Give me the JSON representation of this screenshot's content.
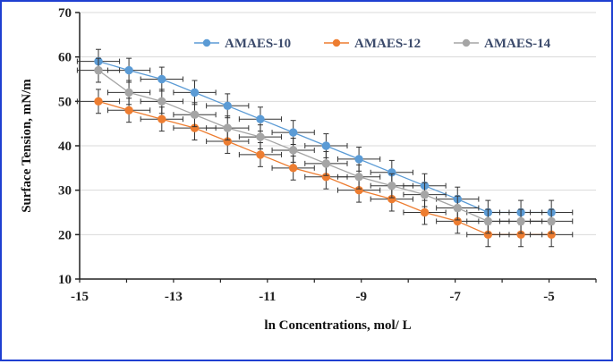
{
  "chart_data": {
    "type": "line",
    "title": "",
    "xlabel": "ln Concentrations, mol/ L",
    "ylabel": "Surface Tension, mN/m",
    "xlim": [
      -15,
      -4
    ],
    "ylim": [
      10,
      70
    ],
    "x_ticks": [
      -15,
      -13,
      -11,
      -9,
      -7,
      -5
    ],
    "y_ticks": [
      10,
      20,
      30,
      40,
      50,
      60,
      70
    ],
    "legend_position": "top-right",
    "error_bars": {
      "x": 0.45,
      "y": 2.7
    },
    "series": [
      {
        "name": "AMAES-10",
        "color": "#5b9bd5",
        "x": [
          -14.6,
          -13.95,
          -13.25,
          -12.55,
          -11.85,
          -11.15,
          -10.45,
          -9.75,
          -9.05,
          -8.35,
          -7.65,
          -6.95,
          -6.3,
          -5.6,
          -4.95
        ],
        "y": [
          59,
          57,
          55,
          52,
          49,
          46,
          43,
          40,
          37,
          34,
          31,
          28,
          25,
          25,
          25
        ]
      },
      {
        "name": "AMAES-12",
        "color": "#ed7d31",
        "x": [
          -14.6,
          -13.95,
          -13.25,
          -12.55,
          -11.85,
          -11.15,
          -10.45,
          -9.75,
          -9.05,
          -8.35,
          -7.65,
          -6.95,
          -6.3,
          -5.6,
          -4.95
        ],
        "y": [
          50,
          48,
          46,
          44,
          41,
          38,
          35,
          33,
          30,
          28,
          25,
          23,
          20,
          20,
          20
        ]
      },
      {
        "name": "AMAES-14",
        "color": "#a5a5a5",
        "x": [
          -14.6,
          -13.95,
          -13.25,
          -12.55,
          -11.85,
          -11.15,
          -10.45,
          -9.75,
          -9.05,
          -8.35,
          -7.65,
          -6.95,
          -6.3,
          -5.6,
          -4.95
        ],
        "y": [
          57,
          52,
          50,
          47,
          44,
          42,
          39,
          36,
          33,
          31,
          29,
          26,
          23,
          23,
          23
        ]
      }
    ]
  }
}
